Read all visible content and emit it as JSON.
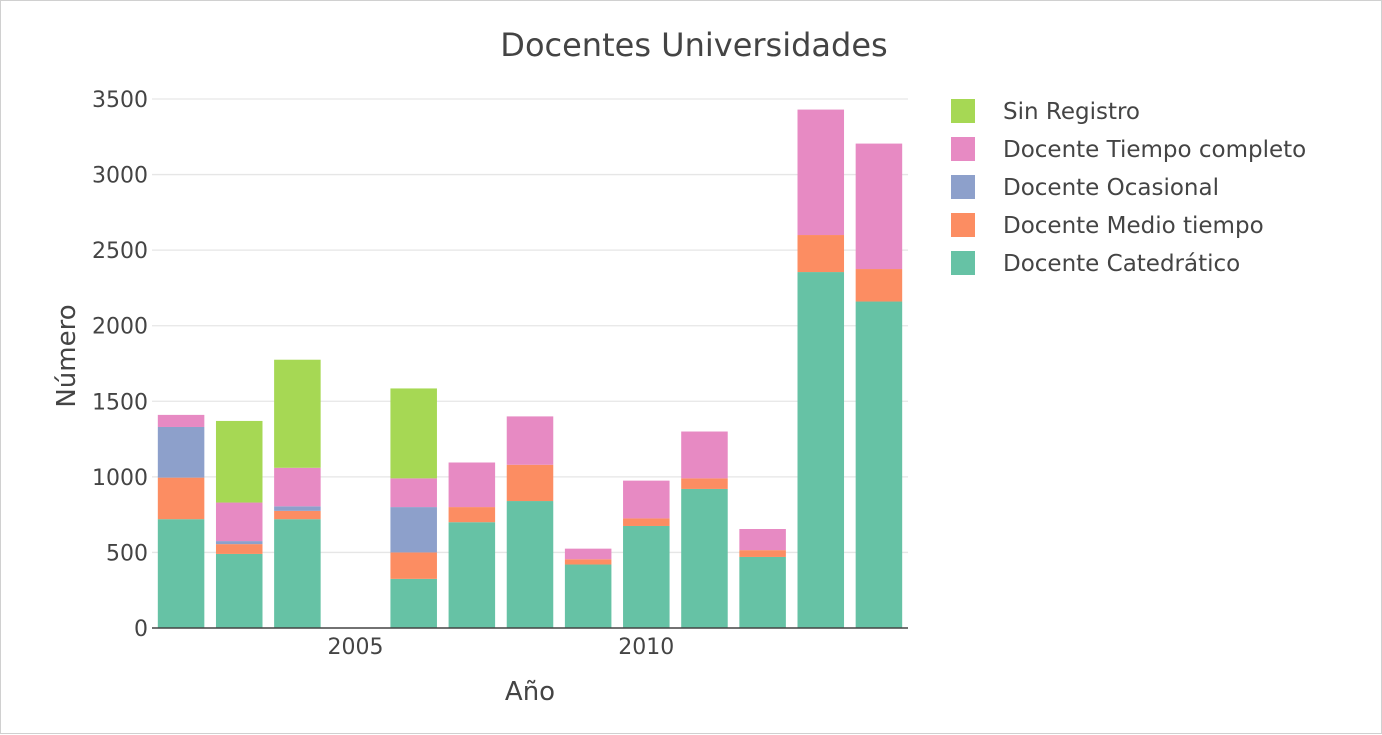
{
  "chart_data": {
    "type": "bar",
    "stacked": true,
    "title": "Docentes Universidades",
    "xlabel": "Año",
    "ylabel": "Número",
    "x": [
      2002,
      2003,
      2004,
      2006,
      2007,
      2008,
      2009,
      2010,
      2011,
      2012,
      2013,
      2014
    ],
    "x_ticks": [
      2005,
      2010
    ],
    "x_tick_labels": [
      "2005",
      "2010"
    ],
    "ylim": [
      0,
      3500
    ],
    "y_ticks": [
      0,
      500,
      1000,
      1500,
      2000,
      2500,
      3000,
      3500
    ],
    "y_tick_labels": [
      "0",
      "500",
      "1000",
      "1500",
      "2000",
      "2500",
      "3000",
      "3500"
    ],
    "grid": true,
    "legend_position": "right",
    "series": [
      {
        "name": "Docente Catedrático",
        "color": "#66c2a5",
        "values": [
          720,
          490,
          720,
          325,
          700,
          840,
          420,
          675,
          920,
          470,
          2355,
          2160
        ]
      },
      {
        "name": "Docente Medio tiempo",
        "color": "#fc8d62",
        "values": [
          275,
          65,
          55,
          175,
          100,
          240,
          35,
          50,
          70,
          45,
          245,
          215
        ]
      },
      {
        "name": "Docente Ocasional",
        "color": "#8da0cb",
        "values": [
          335,
          20,
          30,
          300,
          0,
          0,
          0,
          0,
          0,
          0,
          0,
          0
        ]
      },
      {
        "name": "Docente Tiempo completo",
        "color": "#e78ac3",
        "values": [
          80,
          255,
          255,
          190,
          295,
          320,
          70,
          250,
          310,
          140,
          830,
          830
        ]
      },
      {
        "name": "Sin Registro",
        "color": "#a6d854",
        "values": [
          0,
          540,
          715,
          595,
          0,
          0,
          0,
          0,
          0,
          0,
          0,
          0
        ]
      }
    ]
  }
}
